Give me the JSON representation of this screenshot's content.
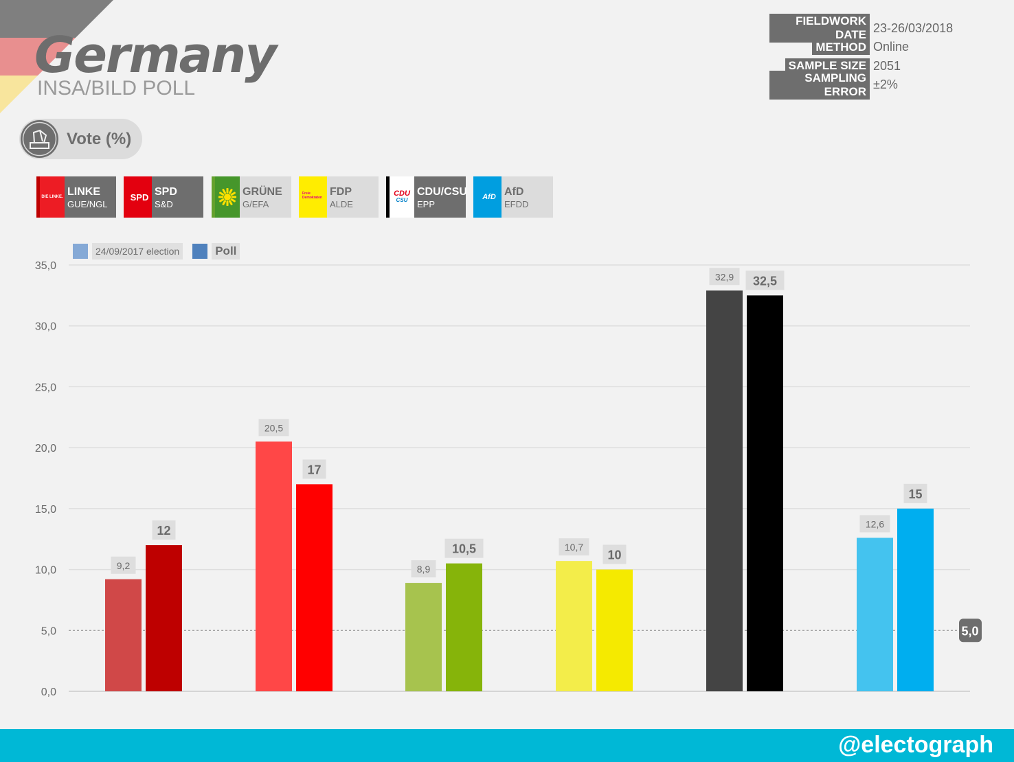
{
  "header": {
    "title": "Germany",
    "subtitle": "INSA/BILD POLL",
    "flag_colors": [
      "#000000",
      "#dd0000",
      "#ffce00"
    ]
  },
  "meta": [
    {
      "label": "FIELDWORK DATE",
      "value": "23-26/03/2018"
    },
    {
      "label": "METHOD",
      "value": "Online"
    },
    {
      "label": "SAMPLE SIZE",
      "value": "2051"
    },
    {
      "label": "SAMPLING ERROR",
      "value": "±2%"
    }
  ],
  "vote_pill": {
    "label": "Vote (%)",
    "icon": "ballot-box-icon"
  },
  "parties": [
    {
      "name": "LINKE",
      "group": "GUE/NGL",
      "logo_text": "DIE LINKE.",
      "color": "#be0000",
      "logo_bg": "#ed1c24",
      "logo_fg": "#ffffff",
      "edge_color": "#be0000"
    },
    {
      "name": "SPD",
      "group": "S&D",
      "logo_text": "SPD",
      "color": "#e3000f",
      "logo_bg": "#e3000f",
      "logo_fg": "#ffffff",
      "edge_color": "#e3000f"
    },
    {
      "name": "GRÜNE",
      "group": "G/EFA",
      "logo_text": "",
      "color": "#64a12d",
      "logo_bg": "#46962b",
      "logo_fg": "#ffe000",
      "edge_color": "#64a12d"
    },
    {
      "name": "FDP",
      "group": "ALDE",
      "logo_text": "Freie Demokraten",
      "color": "#ffed00",
      "logo_bg": "#ffed00",
      "logo_fg": "#e5007d",
      "edge_color": "#ffed00"
    },
    {
      "name": "CDU/CSU",
      "group": "EPP",
      "logo_text": "CDU CSU",
      "color": "#000000",
      "logo_bg": "#ffffff",
      "logo_fg": "#e2001a",
      "edge_color": "#000000"
    },
    {
      "name": "AfD",
      "group": "EFDD",
      "logo_text": "AfD",
      "color": "#009ee0",
      "logo_bg": "#009ee0",
      "logo_fg": "#ffffff",
      "edge_color": "#009ee0"
    }
  ],
  "legend": [
    {
      "label": "24/09/2017 election",
      "color": "#85a9d6"
    },
    {
      "label": "Poll",
      "color": "#4f81bd"
    }
  ],
  "chart_data": {
    "type": "bar",
    "title": "",
    "xlabel": "",
    "ylabel": "",
    "categories": [
      "LINKE",
      "SPD",
      "GRÜNE",
      "FDP",
      "CDU/CSU",
      "AfD"
    ],
    "series": [
      {
        "name": "24/09/2017 election",
        "values": [
          9.2,
          20.5,
          8.9,
          10.7,
          32.9,
          12.6
        ],
        "labels": [
          "9,2",
          "20,5",
          "8,9",
          "10,7",
          "32,9",
          "12,6"
        ],
        "colors": [
          "#d04848",
          "#ff4747",
          "#a7c34e",
          "#f3ed4a",
          "#444444",
          "#44c3ef"
        ]
      },
      {
        "name": "Poll",
        "values": [
          12,
          17,
          10.5,
          10,
          32.5,
          15
        ],
        "labels": [
          "12",
          "17",
          "10,5",
          "10",
          "32,5",
          "15"
        ],
        "colors": [
          "#be0000",
          "#ff0000",
          "#86b40a",
          "#f5ea00",
          "#000000",
          "#00aeef"
        ]
      }
    ],
    "ylim": [
      0,
      35
    ],
    "yticks": [
      0,
      5,
      10,
      15,
      20,
      25,
      30,
      35
    ],
    "ytick_labels": [
      "0,0",
      "5,0",
      "10,0",
      "15,0",
      "20,0",
      "25,0",
      "30,0",
      "35,0"
    ],
    "threshold": {
      "value": 5,
      "label": "5,0"
    },
    "grid": true,
    "legend_position": "top-left"
  },
  "footer": {
    "handle": "@electograph",
    "color": "#00b8d6"
  }
}
